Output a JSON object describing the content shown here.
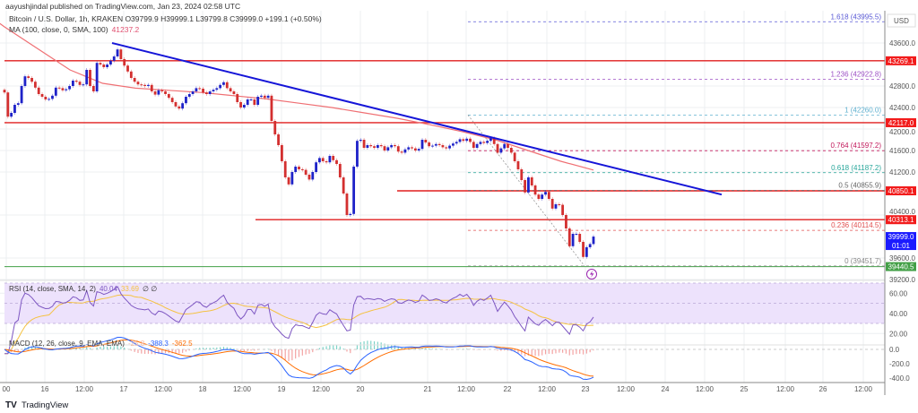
{
  "header": {
    "published": "aayushjindal published on TradingView.com, Jan 23, 2024 02:58 UTC",
    "symbol_legend": "Bitcoin / U.S. Dollar, 1h, KRAKEN  O39799.9  H39999.1  L39799.8  C39999.0  +199.1 (+0.50%)",
    "ma_legend_label": "MA (100, close, 0, SMA, 100)",
    "ma_legend_value": "41237.2"
  },
  "footer": {
    "brand": "TradingView",
    "logo_text": "TV"
  },
  "price_axis": {
    "currency": "USD",
    "ticks": [
      "43600.0",
      "42800.0",
      "42400.0",
      "42000.0",
      "41600.0",
      "41200.0",
      "40400.0",
      "39600.0",
      "39200.0"
    ],
    "tags": [
      {
        "label": "43269.1",
        "color": "#f21b1b"
      },
      {
        "label": "42117.0",
        "color": "#f21b1b"
      },
      {
        "label": "40850.1",
        "color": "#f21b1b"
      },
      {
        "label": "40313.1",
        "color": "#f21b1b"
      },
      {
        "label": "39999.0",
        "sub": "01:01",
        "color": "#1a1aff"
      },
      {
        "label": "39440.5",
        "color": "#43a047"
      }
    ]
  },
  "time_axis": {
    "labels": [
      "00",
      "16",
      "12:00",
      "17",
      "12:00",
      "18",
      "12:00",
      "19",
      "12:00",
      "20",
      "21",
      "12:00",
      "22",
      "12:00",
      "23",
      "12:00",
      "24",
      "12:00",
      "25",
      "12:00",
      "26",
      "12:00"
    ]
  },
  "rsi": {
    "legend_label": "RSI (14, close, SMA, 14, 2)",
    "value": "40.04",
    "sma_value": "33.69",
    "extra": "∅  ∅",
    "ticks": [
      "60.00",
      "40.00",
      "20.00"
    ],
    "line_color": "#7e57c2",
    "sma_color": "#f5c242",
    "band_color": "#ede2fc"
  },
  "macd": {
    "legend_label": "MACD (12, 26, close, 9, EMA, EMA)",
    "hist_value": "-25.8",
    "macd_value": "-388.3",
    "signal_value": "-362.5",
    "ticks": [
      "0.0",
      "-200.0",
      "-400.0"
    ],
    "macd_color": "#2962ff",
    "signal_color": "#ff6d00"
  },
  "colors": {
    "up": "#1e22c8",
    "down": "#d32f2f",
    "ma": "#ef6f73",
    "trend": "#1515d8",
    "level": "#e01e1e",
    "support": "#43a047"
  },
  "icons": {
    "lightning": "lightning-icon"
  },
  "chart_data": {
    "type": "candlestick",
    "symbol": "Bitcoin / U.S. Dollar",
    "interval": "1h",
    "exchange": "KRAKEN",
    "ylim": [
      39100,
      44050
    ],
    "closes": [
      42680,
      42230,
      42300,
      42450,
      42480,
      42800,
      42980,
      42950,
      42880,
      42770,
      42650,
      42600,
      42550,
      42560,
      42620,
      42770,
      42760,
      42720,
      42740,
      42800,
      42900,
      42880,
      42820,
      42830,
      43100,
      42800,
      42700,
      43230,
      43200,
      43150,
      43200,
      43270,
      43350,
      43480,
      43300,
      43180,
      43070,
      42950,
      42880,
      42830,
      42820,
      42800,
      42820,
      42700,
      42640,
      42720,
      42700,
      42650,
      42580,
      42500,
      42420,
      42380,
      42480,
      42600,
      42650,
      42700,
      42760,
      42750,
      42680,
      42650,
      42700,
      42730,
      42760,
      42820,
      42870,
      42760,
      42700,
      42650,
      42500,
      42400,
      42450,
      42550,
      42550,
      42450,
      42600,
      42620,
      42580,
      42620,
      42150,
      41900,
      41700,
      41400,
      41100,
      40970,
      41200,
      41300,
      41250,
      41240,
      41150,
      41060,
      41200,
      41380,
      41460,
      41400,
      41380,
      41500,
      41420,
      41350,
      41100,
      40800,
      40400,
      40420,
      41300,
      41780,
      41800,
      41650,
      41700,
      41680,
      41650,
      41700,
      41680,
      41600,
      41660,
      41700,
      41680,
      41580,
      41560,
      41620,
      41660,
      41640,
      41600,
      41630,
      41800,
      41750,
      41680,
      41690,
      41720,
      41700,
      41660,
      41640,
      41690,
      41730,
      41760,
      41810,
      41780,
      41820,
      41760,
      41650,
      41720,
      41760,
      41740,
      41780,
      41830,
      41720,
      41560,
      41640,
      41720,
      41650,
      41560,
      41400,
      41250,
      41050,
      40820,
      41100,
      40950,
      40780,
      40700,
      40780,
      40830,
      40700,
      40520,
      40600,
      40590,
      40400,
      40150,
      39820,
      40050,
      40050,
      39900,
      39620,
      39800,
      39860,
      39999
    ],
    "first_open": 42730,
    "ma100_samples": [
      43900,
      43500,
      43100,
      42850,
      42760,
      42720,
      42680,
      42620,
      42560,
      42480,
      42400,
      42300,
      42200,
      42080,
      41950,
      41800,
      41600,
      41400,
      41237.2
    ],
    "horizontal_levels": [
      43269.1,
      42117.0,
      40850.1,
      40313.1,
      39440.5
    ],
    "trendline": {
      "start_price": 43600,
      "end_price": 40780
    },
    "fibonacci": [
      {
        "ratio": "1.618",
        "price": "43995.5",
        "color": "#5b5bd6"
      },
      {
        "ratio": "1.236",
        "price": "42922.8",
        "color": "#9c4fc4"
      },
      {
        "ratio": "1",
        "price": "42260.0",
        "color": "#5fb0cf"
      },
      {
        "ratio": "0.764",
        "price": "41597.2",
        "color": "#c2185b"
      },
      {
        "ratio": "0.618",
        "price": "41187.2",
        "color": "#26a69a"
      },
      {
        "ratio": "0.5",
        "price": "40855.9",
        "color": "#666666"
      },
      {
        "ratio": "0.236",
        "price": "40114.5",
        "color": "#e05050"
      },
      {
        "ratio": "0",
        "price": "39451.7",
        "color": "#888888"
      }
    ]
  }
}
